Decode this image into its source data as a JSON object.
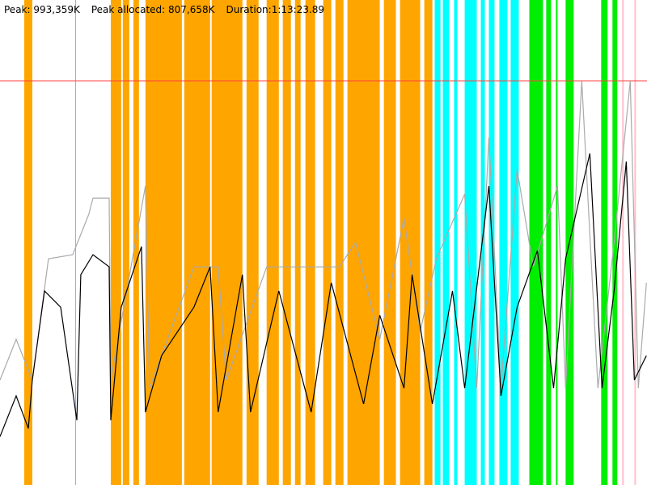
{
  "header": {
    "peak": "Peak: 993,359K",
    "peak_allocated": "Peak allocated: 807,658K",
    "duration": "Duration:1:13:23.89"
  },
  "chart_data": {
    "type": "line",
    "title": "",
    "xlabel": "",
    "ylabel": "",
    "x_unit": "seconds",
    "y_unit": "K",
    "xlim": [
      0,
      4404
    ],
    "ylim": [
      0,
      1192000
    ],
    "grid": false,
    "peak_line": {
      "value": 993359,
      "color": "#ff4040"
    },
    "band_colors": {
      "orange": "#ffa500",
      "cyan": "#00ffff",
      "green": "#00ee00",
      "pink": "#ffc0cb"
    },
    "bands": [
      {
        "color": "orange",
        "range": [
          [
            165,
            220
          ],
          [
            512,
            517
          ],
          [
            754,
            825
          ],
          [
            836,
            880
          ],
          [
            908,
            946
          ],
          [
            990,
            1238
          ],
          [
            1254,
            1430
          ],
          [
            1441,
            1650
          ],
          [
            1678,
            1760
          ],
          [
            1815,
            1898
          ],
          [
            1925,
            1980
          ],
          [
            2008,
            2046
          ],
          [
            2079,
            2145
          ],
          [
            2200,
            2255
          ],
          [
            2283,
            2338
          ],
          [
            2365,
            2585
          ],
          [
            2613,
            2695
          ],
          [
            2723,
            2860
          ],
          [
            2888,
            2943
          ]
        ]
      },
      {
        "color": "cyan",
        "range": [
          [
            2959,
            2998
          ],
          [
            3014,
            3058
          ],
          [
            3091,
            3113
          ],
          [
            3163,
            3245
          ],
          [
            3273,
            3300
          ],
          [
            3328,
            3366
          ],
          [
            3399,
            3454
          ],
          [
            3476,
            3531
          ]
        ]
      },
      {
        "color": "green",
        "range": [
          [
            3603,
            3696
          ],
          [
            3718,
            3751
          ],
          [
            3784,
            3795
          ],
          [
            3850,
            3905
          ],
          [
            4092,
            4136
          ],
          [
            4169,
            4202
          ]
        ]
      },
      {
        "color": "pink",
        "range": [
          [
            4235,
            4246
          ],
          [
            4318,
            4329
          ]
        ]
      }
    ],
    "series": [
      {
        "color": "#aaaaaa",
        "points": [
          [
            0,
            258000
          ],
          [
            110,
            358000
          ],
          [
            220,
            258000
          ],
          [
            330,
            556000
          ],
          [
            495,
            566000
          ],
          [
            605,
            666000
          ],
          [
            633,
            705000
          ],
          [
            743,
            705000
          ],
          [
            754,
            258000
          ],
          [
            990,
            735000
          ],
          [
            1018,
            238000
          ],
          [
            1320,
            536000
          ],
          [
            1485,
            536000
          ],
          [
            1540,
            258000
          ],
          [
            1815,
            536000
          ],
          [
            2090,
            536000
          ],
          [
            2310,
            536000
          ],
          [
            2420,
            596000
          ],
          [
            2585,
            358000
          ],
          [
            2750,
            656000
          ],
          [
            2860,
            377000
          ],
          [
            2970,
            556000
          ],
          [
            3163,
            715000
          ],
          [
            3245,
            238000
          ],
          [
            3328,
            854000
          ],
          [
            3410,
            238000
          ],
          [
            3520,
            775000
          ],
          [
            3630,
            536000
          ],
          [
            3795,
            735000
          ],
          [
            3850,
            238000
          ],
          [
            3960,
            993000
          ],
          [
            4070,
            238000
          ],
          [
            4180,
            596000
          ],
          [
            4290,
            993000
          ],
          [
            4345,
            238000
          ],
          [
            4400,
            497000
          ]
        ]
      },
      {
        "color": "#000000",
        "points": [
          [
            0,
            119000
          ],
          [
            110,
            219000
          ],
          [
            193,
            139000
          ],
          [
            220,
            258000
          ],
          [
            303,
            477000
          ],
          [
            413,
            437000
          ],
          [
            523,
            159000
          ],
          [
            550,
            517000
          ],
          [
            633,
            566000
          ],
          [
            743,
            536000
          ],
          [
            754,
            159000
          ],
          [
            825,
            437000
          ],
          [
            963,
            586000
          ],
          [
            990,
            179000
          ],
          [
            1100,
            318000
          ],
          [
            1320,
            437000
          ],
          [
            1430,
            536000
          ],
          [
            1485,
            179000
          ],
          [
            1650,
            517000
          ],
          [
            1705,
            179000
          ],
          [
            1898,
            477000
          ],
          [
            2118,
            179000
          ],
          [
            2255,
            497000
          ],
          [
            2475,
            199000
          ],
          [
            2585,
            417000
          ],
          [
            2750,
            238000
          ],
          [
            2805,
            517000
          ],
          [
            2943,
            199000
          ],
          [
            3080,
            477000
          ],
          [
            3163,
            238000
          ],
          [
            3328,
            735000
          ],
          [
            3410,
            219000
          ],
          [
            3520,
            437000
          ],
          [
            3658,
            576000
          ],
          [
            3768,
            238000
          ],
          [
            3850,
            556000
          ],
          [
            4015,
            815000
          ],
          [
            4098,
            238000
          ],
          [
            4180,
            477000
          ],
          [
            4263,
            795000
          ],
          [
            4318,
            258000
          ],
          [
            4400,
            318000
          ]
        ]
      }
    ]
  }
}
